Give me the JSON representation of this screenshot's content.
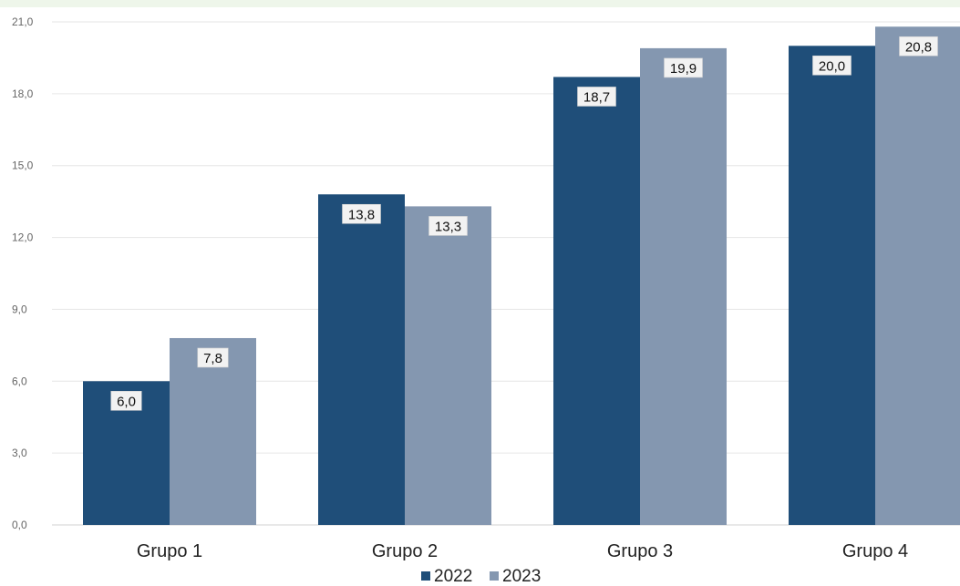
{
  "chart_data": {
    "type": "bar",
    "title": "",
    "xlabel": "",
    "ylabel": "",
    "categories": [
      "Grupo 1",
      "Grupo 2",
      "Grupo 3",
      "Grupo 4"
    ],
    "series": [
      {
        "name": "2022",
        "color": "#1f4e79",
        "values": [
          6.0,
          13.8,
          18.7,
          20.0
        ],
        "labels": [
          "6,0",
          "13,8",
          "18,7",
          "20,0"
        ]
      },
      {
        "name": "2023",
        "color": "#8497b0",
        "values": [
          7.8,
          13.3,
          19.9,
          20.8
        ],
        "labels": [
          "7,8",
          "13,3",
          "19,9",
          "20,8"
        ]
      }
    ],
    "ylim": [
      0,
      21
    ],
    "yticks": [
      0,
      3,
      6,
      9,
      12,
      15,
      18,
      21
    ],
    "ytick_labels": [
      "0,0",
      "3,0",
      "6,0",
      "9,0",
      "12,0",
      "15,0",
      "18,0",
      "21,0"
    ],
    "grid": true,
    "legend_position": "bottom-center",
    "colors": {
      "background": "#eef6ea",
      "plot_background": "#ffffff",
      "gridline": "#e6e6e6",
      "label_box": "#f2f2f2"
    }
  }
}
